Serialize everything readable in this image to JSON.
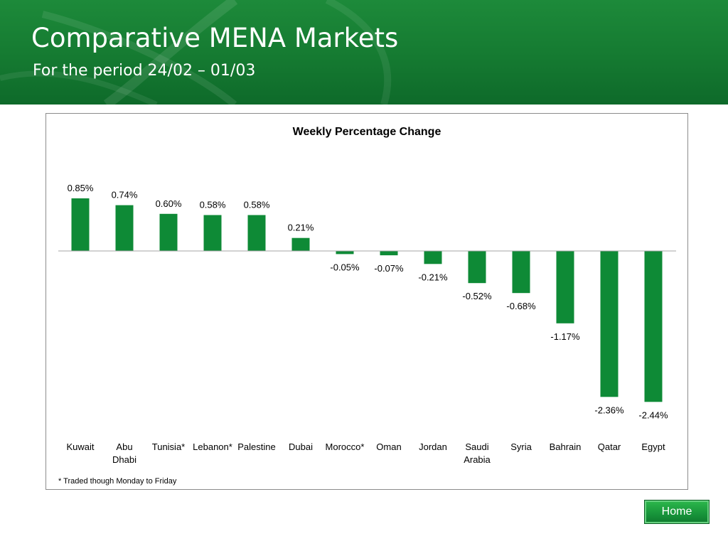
{
  "header": {
    "title": "Comparative MENA Markets",
    "subtitle": "For the period 24/02  –  01/03"
  },
  "chart_data": {
    "type": "bar",
    "title": "Weekly Percentage Change",
    "categories": [
      "Kuwait",
      "Abu Dhabi",
      "Tunisia*",
      "Lebanon*",
      "Palestine",
      "Dubai",
      "Morocco*",
      "Oman",
      "Jordan",
      "Saudi Arabia",
      "Syria",
      "Bahrain",
      "Qatar",
      "Egypt"
    ],
    "category_lines": [
      [
        "Kuwait"
      ],
      [
        "Abu",
        "Dhabi"
      ],
      [
        "Tunisia*"
      ],
      [
        "Lebanon*"
      ],
      [
        "Palestine"
      ],
      [
        "Dubai"
      ],
      [
        "Morocco*"
      ],
      [
        "Oman"
      ],
      [
        "Jordan"
      ],
      [
        "Saudi",
        "Arabia"
      ],
      [
        "Syria"
      ],
      [
        "Bahrain"
      ],
      [
        "Qatar"
      ],
      [
        "Egypt"
      ]
    ],
    "values": [
      0.85,
      0.74,
      0.6,
      0.58,
      0.58,
      0.21,
      -0.05,
      -0.07,
      -0.21,
      -0.52,
      -0.68,
      -1.17,
      -2.36,
      -2.44
    ],
    "data_labels": [
      "0.85%",
      "0.74%",
      "0.60%",
      "0.58%",
      "0.58%",
      "0.21%",
      "-0.05%",
      "-0.07%",
      "-0.21%",
      "-0.52%",
      "-0.68%",
      "-1.17%",
      "-2.36%",
      "-2.44%"
    ],
    "xlabel": "",
    "ylabel": "",
    "ylim": [
      -2.44,
      0.85
    ],
    "grid": false,
    "bar_color": "#0e8a36",
    "axis_color": "#a6a6a6"
  },
  "footnote": "* Traded though Monday to Friday",
  "home_button": {
    "label": "Home"
  },
  "colors": {
    "banner": "#157a31",
    "bar": "#0e8a36"
  }
}
